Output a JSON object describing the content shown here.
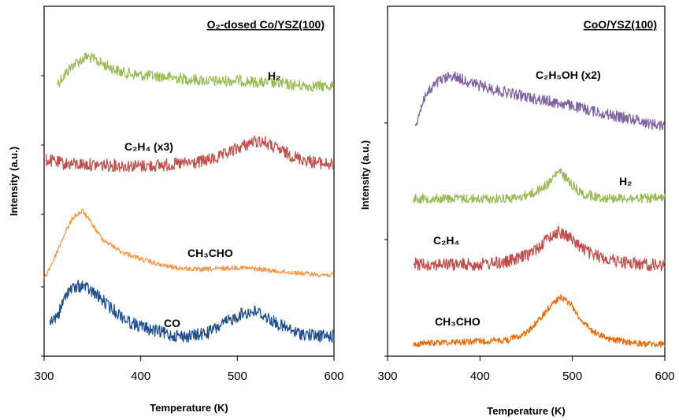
{
  "chart_data": [
    {
      "type": "line",
      "title": "O₂-dosed Co/YSZ(100)",
      "xlabel": "Temperature (K)",
      "ylabel": "Intensity (a.u.)",
      "xlim": [
        300,
        600
      ],
      "xticks": [
        "300",
        "400",
        "500",
        "600"
      ],
      "grid": false,
      "legend": "inline labels",
      "series": [
        {
          "name": "H₂",
          "color": "#9bbb59",
          "x": [
            314,
            330,
            345,
            360,
            380,
            400,
            420,
            450,
            480,
            500,
            520,
            540,
            560,
            580,
            600
          ],
          "y": [
            0.2,
            0.58,
            0.75,
            0.6,
            0.42,
            0.36,
            0.34,
            0.28,
            0.24,
            0.26,
            0.22,
            0.2,
            0.16,
            0.14,
            0.15
          ]
        },
        {
          "name": "C₂H₄ (x3)",
          "color": "#c0504d",
          "x": [
            302,
            320,
            350,
            380,
            400,
            430,
            460,
            480,
            500,
            515,
            525,
            540,
            560,
            580,
            600
          ],
          "y": [
            0.44,
            0.38,
            0.36,
            0.35,
            0.34,
            0.36,
            0.4,
            0.47,
            0.62,
            0.72,
            0.74,
            0.62,
            0.48,
            0.4,
            0.36
          ]
        },
        {
          "name": "CH₃CHO",
          "color": "#f79646",
          "x": [
            300,
            310,
            320,
            330,
            340,
            350,
            360,
            380,
            400,
            420,
            440,
            460,
            480,
            500,
            520,
            540,
            560,
            580,
            600
          ],
          "y": [
            0.0,
            0.25,
            0.55,
            0.8,
            0.88,
            0.7,
            0.52,
            0.35,
            0.26,
            0.18,
            0.14,
            0.12,
            0.13,
            0.15,
            0.13,
            0.1,
            0.08,
            0.06,
            0.05
          ]
        },
        {
          "name": "CO",
          "color": "#1f4e8c",
          "x": [
            306,
            315,
            325,
            340,
            355,
            370,
            390,
            410,
            430,
            450,
            470,
            490,
            505,
            520,
            540,
            560,
            580,
            600
          ],
          "y": [
            0.3,
            0.42,
            0.72,
            0.78,
            0.65,
            0.48,
            0.3,
            0.22,
            0.15,
            0.13,
            0.18,
            0.32,
            0.42,
            0.45,
            0.3,
            0.18,
            0.14,
            0.13
          ]
        }
      ]
    },
    {
      "type": "line",
      "title": "CoO/YSZ(100)",
      "xlabel": "Temperature (K)",
      "ylabel": "Intensity (a.u.)",
      "xlim": [
        300,
        600
      ],
      "xticks": [
        "300",
        "400",
        "500",
        "600"
      ],
      "grid": false,
      "legend": "inline labels",
      "series": [
        {
          "name": "C₂H₅OH (x2)",
          "color": "#8064a2",
          "x": [
            330,
            340,
            355,
            370,
            390,
            410,
            430,
            450,
            470,
            490,
            510,
            530,
            550,
            570,
            585,
            600
          ],
          "y": [
            0.1,
            0.5,
            0.72,
            0.8,
            0.7,
            0.62,
            0.56,
            0.5,
            0.45,
            0.4,
            0.34,
            0.28,
            0.22,
            0.18,
            0.12,
            0.1
          ]
        },
        {
          "name": "H₂",
          "color": "#9bbb59",
          "x": [
            328,
            360,
            400,
            440,
            460,
            475,
            485,
            490,
            500,
            510,
            530,
            560,
            600
          ],
          "y": [
            0.22,
            0.22,
            0.21,
            0.23,
            0.35,
            0.55,
            0.8,
            0.72,
            0.5,
            0.32,
            0.24,
            0.22,
            0.22
          ]
        },
        {
          "name": "C₂H₄",
          "color": "#c0504d",
          "x": [
            328,
            360,
            400,
            430,
            450,
            465,
            475,
            485,
            495,
            505,
            520,
            545,
            570,
            600
          ],
          "y": [
            0.26,
            0.25,
            0.25,
            0.3,
            0.42,
            0.6,
            0.78,
            0.88,
            0.8,
            0.64,
            0.45,
            0.32,
            0.26,
            0.22
          ]
        },
        {
          "name": "CH₃CHO",
          "color": "#e46c0a",
          "x": [
            328,
            360,
            400,
            430,
            450,
            465,
            478,
            488,
            498,
            508,
            520,
            540,
            560,
            580,
            600
          ],
          "y": [
            0.05,
            0.08,
            0.1,
            0.12,
            0.25,
            0.5,
            0.78,
            0.9,
            0.78,
            0.52,
            0.3,
            0.14,
            0.08,
            0.05,
            0.04
          ]
        }
      ]
    }
  ]
}
